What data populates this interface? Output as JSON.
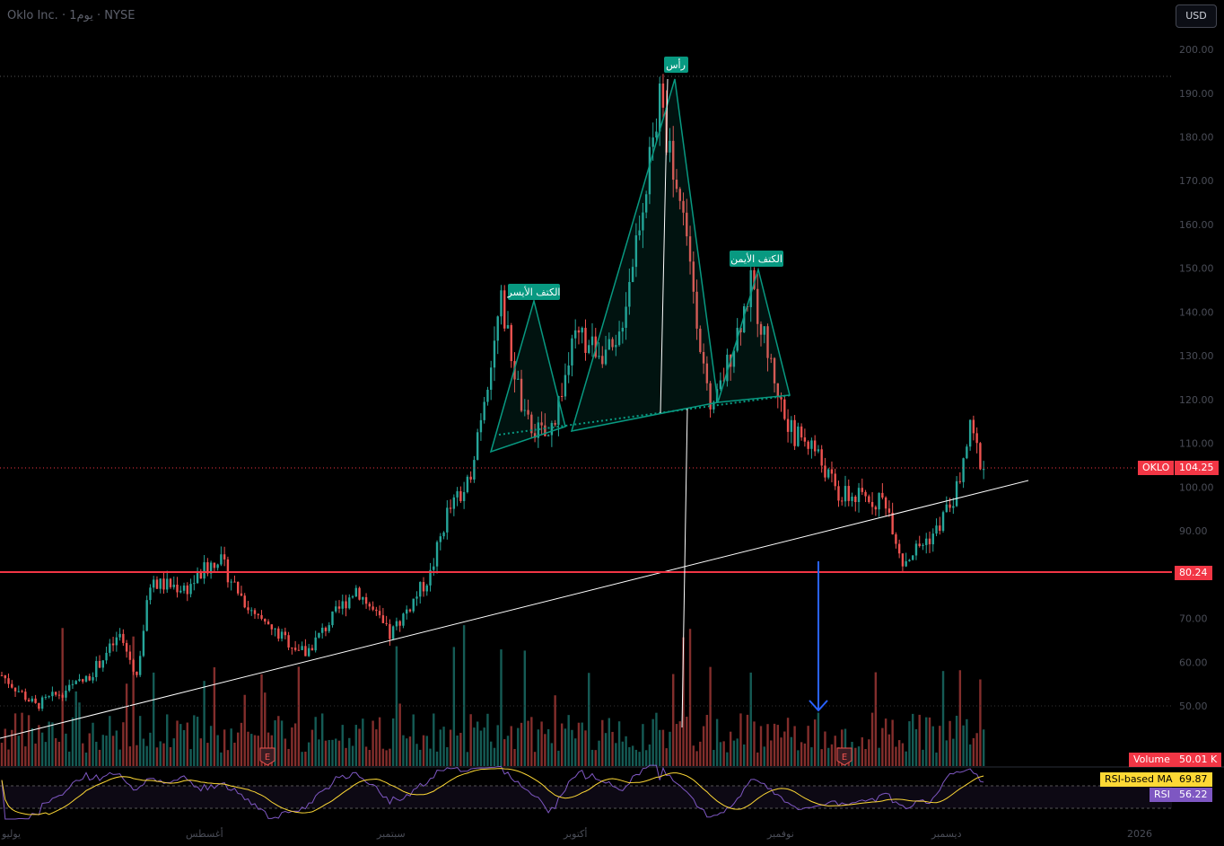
{
  "header": {
    "symbol_line": "Oklo Inc. · 1يوم · NYSE"
  },
  "currency_button": "USD",
  "price_tag": {
    "symbol": "OKLO",
    "value": "104.25"
  },
  "level_tag": {
    "value": "80.24"
  },
  "volume_badge": {
    "label": "Volume",
    "value": "50.01 K"
  },
  "rsi_ma_badge": {
    "label": "RSI-based MA",
    "value": "69.87"
  },
  "rsi_badge": {
    "label": "RSI",
    "value": "56.22"
  },
  "pattern_labels": {
    "left_shoulder": "الكتف الأيسر",
    "head": "رأس",
    "right_shoulder": "الكتف الأيمن"
  },
  "earnings_marker": "E",
  "colors": {
    "up": "#26a69a",
    "down": "#ef5350",
    "level": "#f23645",
    "pattern": "#089981",
    "arrow": "#2962ff",
    "rsi": "#7e57c2",
    "rsi_ma": "#fdd835"
  },
  "chart_data": {
    "type": "candlestick",
    "y_axis": {
      "min": 45,
      "max": 205,
      "ticks": [
        "50.00",
        "60.00",
        "70.00",
        "80.00",
        "90.00",
        "100.00",
        "110.00",
        "120.00",
        "130.00",
        "140.00",
        "150.00",
        "160.00",
        "170.00",
        "180.00",
        "190.00",
        "200.00"
      ]
    },
    "x_axis": {
      "ticks": [
        "يوليو",
        "أغسطس",
        "سبتمبر",
        "أكتوبر",
        "نوفمبر",
        "ديسمبر",
        "2026"
      ]
    },
    "price_keypoints": [
      {
        "day": 0,
        "v": 57
      },
      {
        "day": 10,
        "v": 50
      },
      {
        "day": 25,
        "v": 56
      },
      {
        "day": 35,
        "v": 66
      },
      {
        "day": 40,
        "v": 57
      },
      {
        "day": 44,
        "v": 78
      },
      {
        "day": 55,
        "v": 77
      },
      {
        "day": 64,
        "v": 84
      },
      {
        "day": 75,
        "v": 70
      },
      {
        "day": 90,
        "v": 62
      },
      {
        "day": 105,
        "v": 77
      },
      {
        "day": 115,
        "v": 66
      },
      {
        "day": 127,
        "v": 80
      },
      {
        "day": 132,
        "v": 94
      },
      {
        "day": 138,
        "v": 100
      },
      {
        "day": 148,
        "v": 142
      },
      {
        "day": 155,
        "v": 115
      },
      {
        "day": 162,
        "v": 111
      },
      {
        "day": 170,
        "v": 134
      },
      {
        "day": 182,
        "v": 130
      },
      {
        "day": 195,
        "v": 188
      },
      {
        "day": 203,
        "v": 158
      },
      {
        "day": 210,
        "v": 115
      },
      {
        "day": 222,
        "v": 146
      },
      {
        "day": 233,
        "v": 113
      },
      {
        "day": 240,
        "v": 110
      },
      {
        "day": 248,
        "v": 98
      },
      {
        "day": 262,
        "v": 97
      },
      {
        "day": 267,
        "v": 83
      },
      {
        "day": 277,
        "v": 90
      },
      {
        "day": 283,
        "v": 99
      },
      {
        "day": 287,
        "v": 113
      },
      {
        "day": 291,
        "v": 104
      }
    ],
    "horizontal_level": 80.24,
    "last_price": 104.25,
    "volume_last": "50.01 K",
    "rsi": {
      "value": 56.22,
      "ma": 69.87
    }
  }
}
